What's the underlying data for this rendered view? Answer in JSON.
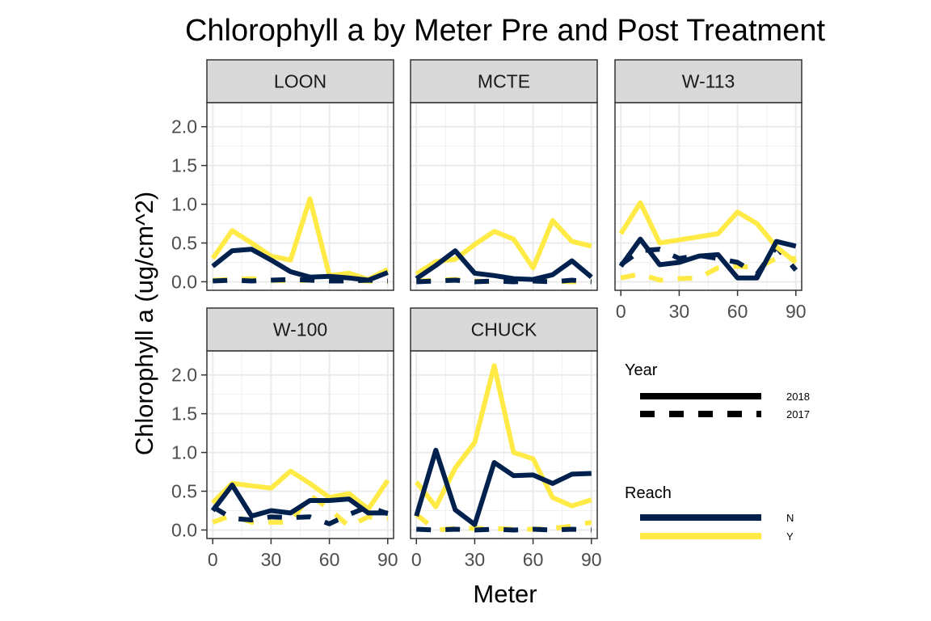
{
  "chart_data": {
    "type": "line",
    "title": "Chlorophyll a by Meter Pre and Post Treatment",
    "xlabel": "Meter",
    "ylabel": "Chlorophyll a (ug/cm^2)",
    "xlim": [
      -3,
      93
    ],
    "ylim": [
      -0.11,
      2.31
    ],
    "x_ticks": [
      0,
      30,
      60,
      90
    ],
    "y_ticks": [
      0.0,
      0.5,
      1.0,
      1.5,
      2.0
    ],
    "y_tick_labels": [
      "0.0",
      "0.5",
      "1.0",
      "1.5",
      "2.0"
    ],
    "grid": true,
    "legend_position": "right",
    "legends": [
      {
        "title": "Year",
        "entries": [
          {
            "label": "2018",
            "linetype": "solid"
          },
          {
            "label": "2017",
            "linetype": "dashed"
          }
        ]
      },
      {
        "title": "Reach",
        "entries": [
          {
            "label": "N",
            "color": "#00204D"
          },
          {
            "label": "Y",
            "color": "#FFEA46"
          }
        ]
      }
    ],
    "colors": {
      "N": "#00204D",
      "Y": "#FFEA46"
    },
    "x": [
      0,
      10,
      20,
      30,
      40,
      50,
      60,
      70,
      80,
      90
    ],
    "panels": [
      {
        "name": "LOON",
        "series": [
          {
            "reach": "N",
            "year": "2018",
            "values": [
              0.2,
              0.4,
              0.42,
              0.28,
              0.13,
              0.06,
              0.07,
              0.05,
              0.02,
              0.12
            ]
          },
          {
            "reach": "Y",
            "year": "2018",
            "values": [
              0.3,
              0.66,
              0.5,
              0.33,
              0.28,
              1.07,
              0.08,
              0.11,
              0.03,
              0.16
            ]
          },
          {
            "reach": "N",
            "year": "2017",
            "values": [
              0.01,
              0.02,
              0.01,
              0.02,
              0.03,
              0.02,
              0.01,
              0.01,
              0.02,
              0.01
            ]
          },
          {
            "reach": "Y",
            "year": "2017",
            "values": [
              0.02,
              0.03,
              0.04,
              0.02,
              0.01,
              0.02,
              0.01,
              0.02,
              0.01,
              0.0
            ]
          }
        ]
      },
      {
        "name": "MCTE",
        "series": [
          {
            "reach": "N",
            "year": "2018",
            "values": [
              0.04,
              0.21,
              0.4,
              0.11,
              0.08,
              0.04,
              0.03,
              0.09,
              0.27,
              0.06
            ]
          },
          {
            "reach": "Y",
            "year": "2018",
            "values": [
              0.1,
              0.26,
              0.29,
              0.48,
              0.65,
              0.55,
              0.18,
              0.79,
              0.52,
              0.46
            ]
          },
          {
            "reach": "N",
            "year": "2017",
            "values": [
              0.0,
              0.01,
              0.02,
              0.0,
              0.01,
              0.0,
              0.01,
              0.0,
              0.02,
              0.0
            ]
          },
          {
            "reach": "Y",
            "year": "2017",
            "values": [
              0.01,
              0.02,
              0.03,
              0.01,
              0.0,
              0.01,
              0.02,
              0.01,
              0.0,
              0.01
            ]
          }
        ]
      },
      {
        "name": "W-113",
        "series": [
          {
            "reach": "N",
            "year": "2018",
            "values": [
              0.2,
              0.55,
              0.22,
              0.25,
              0.33,
              0.35,
              0.05,
              0.05,
              0.52,
              0.46
            ]
          },
          {
            "reach": "Y",
            "year": "2018",
            "values": [
              0.62,
              1.02,
              0.5,
              0.54,
              0.58,
              0.62,
              0.9,
              0.75,
              0.45,
              0.25
            ]
          },
          {
            "reach": "N",
            "year": "2017",
            "values": [
              0.22,
              0.4,
              0.42,
              0.3,
              0.34,
              0.3,
              0.25,
              0.1,
              0.45,
              0.15
            ]
          },
          {
            "reach": "Y",
            "year": "2017",
            "values": [
              0.05,
              0.1,
              0.02,
              0.04,
              0.05,
              0.18,
              0.2,
              0.18,
              0.3,
              0.3
            ]
          }
        ]
      },
      {
        "name": "W-100",
        "series": [
          {
            "reach": "N",
            "year": "2018",
            "values": [
              0.25,
              0.58,
              0.18,
              0.25,
              0.22,
              0.38,
              0.38,
              0.4,
              0.22,
              0.22
            ]
          },
          {
            "reach": "Y",
            "year": "2018",
            "values": [
              0.35,
              0.6,
              0.57,
              0.54,
              0.76,
              0.6,
              0.42,
              0.47,
              0.27,
              0.64
            ]
          },
          {
            "reach": "N",
            "year": "2017",
            "values": [
              0.3,
              0.15,
              0.13,
              0.17,
              0.16,
              0.17,
              0.08,
              0.2,
              0.3,
              0.21
            ]
          },
          {
            "reach": "Y",
            "year": "2017",
            "values": [
              0.1,
              0.19,
              0.1,
              0.1,
              0.1,
              0.45,
              0.27,
              0.05,
              0.17,
              0.15
            ]
          }
        ]
      },
      {
        "name": "CHUCK",
        "series": [
          {
            "reach": "N",
            "year": "2018",
            "values": [
              0.18,
              1.03,
              0.26,
              0.07,
              0.87,
              0.7,
              0.71,
              0.6,
              0.72,
              0.73
            ]
          },
          {
            "reach": "Y",
            "year": "2018",
            "values": [
              0.62,
              0.3,
              0.8,
              1.13,
              2.12,
              1.0,
              0.92,
              0.42,
              0.31,
              0.39
            ]
          },
          {
            "reach": "N",
            "year": "2017",
            "values": [
              0.01,
              0.0,
              0.01,
              0.0,
              0.01,
              0.0,
              0.01,
              0.0,
              0.01,
              0.0
            ]
          },
          {
            "reach": "Y",
            "year": "2017",
            "values": [
              0.2,
              0.0,
              0.02,
              0.02,
              0.02,
              0.01,
              0.01,
              0.02,
              0.05,
              0.1
            ]
          }
        ]
      }
    ]
  }
}
